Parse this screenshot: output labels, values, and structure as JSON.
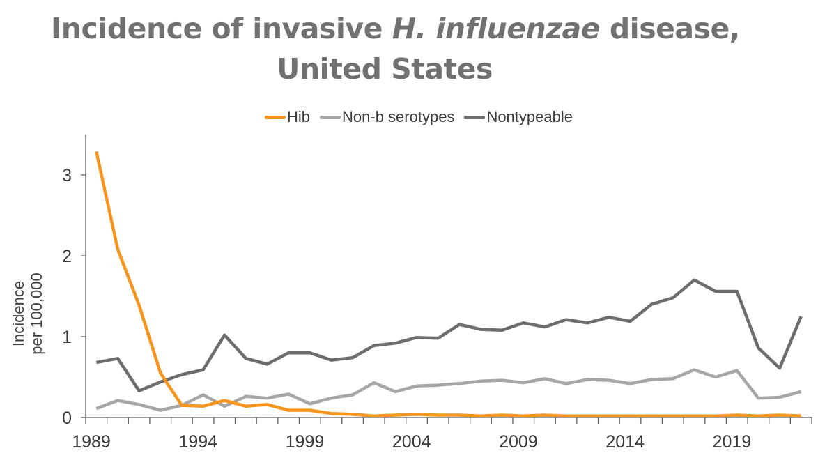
{
  "title": {
    "line1_prefix": "Incidence of invasive ",
    "line1_italic": "H. influenzae",
    "line1_suffix": " disease,",
    "line2": "United States"
  },
  "legend": [
    {
      "label": "Hib",
      "color": "#F7941D"
    },
    {
      "label": "Non-b serotypes",
      "color": "#A7A5A8"
    },
    {
      "label": "Nontypeable",
      "color": "#6D6C6F"
    }
  ],
  "chart_data": {
    "type": "line",
    "title": "Incidence of invasive H. influenzae disease, United States",
    "xlabel": "",
    "ylabel": "Incidence per 100,000",
    "ylabel_lines": [
      "Incidence",
      "per 100,000"
    ],
    "ylim": [
      0,
      3.5
    ],
    "yticks": [
      0,
      1,
      2,
      3
    ],
    "xtick_labels": [
      "1989",
      "1994",
      "1999",
      "2004",
      "2009",
      "2014",
      "2019"
    ],
    "grid": false,
    "legend_position": "top",
    "x": [
      1989,
      1990,
      1991,
      1992,
      1993,
      1994,
      1995,
      1996,
      1997,
      1998,
      1999,
      2000,
      2001,
      2002,
      2003,
      2004,
      2005,
      2006,
      2007,
      2008,
      2009,
      2010,
      2011,
      2012,
      2013,
      2014,
      2015,
      2016,
      2017,
      2018,
      2019,
      2020,
      2021,
      2022
    ],
    "series": [
      {
        "name": "Hib",
        "color": "#F7941D",
        "values": [
          3.29,
          2.08,
          1.39,
          0.55,
          0.15,
          0.14,
          0.21,
          0.14,
          0.16,
          0.09,
          0.09,
          0.05,
          0.04,
          0.02,
          0.03,
          0.04,
          0.03,
          0.03,
          0.02,
          0.03,
          0.02,
          0.03,
          0.02,
          0.02,
          0.02,
          0.02,
          0.02,
          0.02,
          0.02,
          0.02,
          0.03,
          0.02,
          0.03,
          0.02
        ]
      },
      {
        "name": "Non-b serotypes",
        "color": "#A7A5A8",
        "values": [
          0.11,
          0.21,
          0.16,
          0.09,
          0.15,
          0.28,
          0.14,
          0.26,
          0.24,
          0.29,
          0.17,
          0.24,
          0.28,
          0.43,
          0.32,
          0.39,
          0.4,
          0.42,
          0.45,
          0.46,
          0.43,
          0.48,
          0.42,
          0.47,
          0.46,
          0.42,
          0.47,
          0.48,
          0.59,
          0.5,
          0.58,
          0.24,
          0.25,
          0.32
        ]
      },
      {
        "name": "Nontypeable",
        "color": "#6D6C6F",
        "values": [
          0.68,
          0.73,
          0.33,
          0.44,
          0.53,
          0.59,
          1.02,
          0.73,
          0.66,
          0.8,
          0.8,
          0.71,
          0.74,
          0.89,
          0.92,
          0.99,
          0.98,
          1.15,
          1.09,
          1.08,
          1.17,
          1.12,
          1.21,
          1.17,
          1.24,
          1.19,
          1.4,
          1.48,
          1.7,
          1.56,
          1.56,
          0.86,
          0.61,
          1.25
        ]
      }
    ]
  }
}
